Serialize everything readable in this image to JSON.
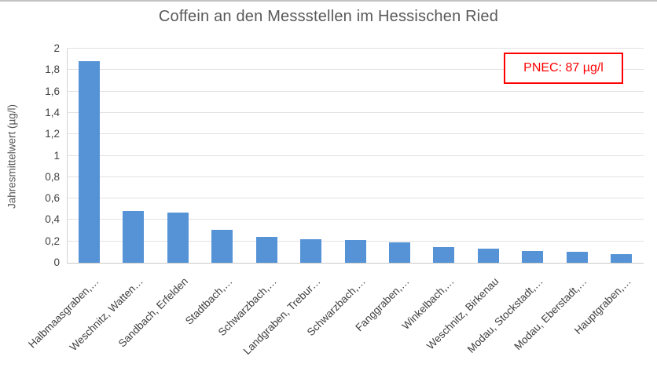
{
  "window": {
    "background": "#ffffff",
    "top_border_color": "#c2c2c2"
  },
  "chart_data": {
    "type": "bar",
    "title": "Coffein an den Messstellen im Hessischen Ried",
    "ylabel": "Jahresmittelwert (µg/l)",
    "xlabel": "",
    "categories": [
      "Halbmaasgraben,…",
      "Weschnitz, Watten…",
      "Sandbach, Erfelden",
      "Stadtbach,…",
      "Schwarzbach,…",
      "Landgraben, Trebur…",
      "Schwarzbach,…",
      "Fanggraben,…",
      "Winkelbach,…",
      "Weschnitz, Birkenau",
      "Modau, Stockstadt,…",
      "Modau, Eberstadt,…",
      "Hauptgraben,…"
    ],
    "values": [
      1.88,
      0.48,
      0.47,
      0.31,
      0.24,
      0.22,
      0.21,
      0.19,
      0.15,
      0.13,
      0.11,
      0.1,
      0.08
    ],
    "ylim": [
      0,
      2
    ],
    "ytick_step": 0.2,
    "ytick_labels": [
      "0",
      "0,2",
      "0,4",
      "0,6",
      "0,8",
      "1",
      "1,2",
      "1,4",
      "1,6",
      "1,8",
      "2"
    ],
    "grid": true,
    "legend": "none",
    "bar_color": "#5593d6",
    "grid_color": "#e2e2e2",
    "title_color": "#595959",
    "tick_color": "#404040",
    "annotation": {
      "label": "PNEC: 87 µg/l",
      "color": "#ff0000"
    }
  }
}
